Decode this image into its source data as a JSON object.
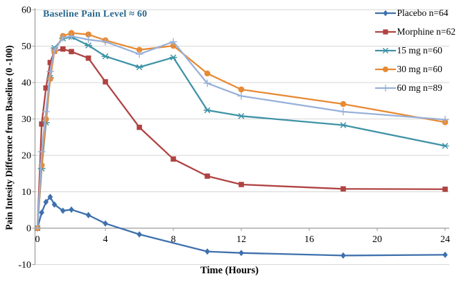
{
  "chart_data": {
    "type": "line",
    "annotation": "Baseline Pain Level ≈ 60",
    "xlabel": "Time (Hours)",
    "ylabel": "Pain Intesity Difference from Baseline (0 -100)",
    "xlim": [
      0,
      24
    ],
    "ylim": [
      -10,
      60
    ],
    "xticks": [
      0,
      4,
      8,
      12,
      16,
      20,
      24
    ],
    "yticks": [
      -10,
      0,
      10,
      20,
      30,
      40,
      50,
      60
    ],
    "grid": "horizontal",
    "legend_position": "top-right",
    "series": [
      {
        "name": "Placebo n=64",
        "color": "#3E70AD",
        "marker": "diamond",
        "x": [
          0,
          0.25,
          0.5,
          0.75,
          1,
          1.5,
          2,
          3,
          4,
          6,
          10,
          12,
          18,
          24
        ],
        "y": [
          0,
          4.3,
          7.2,
          8.6,
          6.5,
          4.8,
          5.1,
          3.6,
          1.3,
          -1.7,
          -6.4,
          -6.8,
          -7.5,
          -7.3
        ]
      },
      {
        "name": "Morphine n=62",
        "color": "#AF4342",
        "marker": "square",
        "x": [
          0,
          0.25,
          0.5,
          0.75,
          1,
          1.5,
          2,
          3,
          4,
          6,
          8,
          10,
          12,
          18,
          24
        ],
        "y": [
          0,
          28.6,
          38.5,
          45.5,
          48.6,
          49.2,
          48.5,
          46.7,
          40.2,
          27.7,
          19.0,
          14.3,
          12.0,
          10.8,
          10.7
        ]
      },
      {
        "name": "15 mg n=60",
        "color": "#3E93A6",
        "marker": "star",
        "x": [
          0,
          0.25,
          0.5,
          0.75,
          1,
          1.5,
          2,
          3,
          4,
          6,
          8,
          10,
          12,
          18,
          24
        ],
        "y": [
          0,
          16.4,
          29.0,
          41.3,
          49.5,
          52.1,
          52.5,
          50.2,
          47.2,
          44.2,
          46.9,
          32.4,
          30.8,
          28.3,
          22.6
        ]
      },
      {
        "name": "30 mg n=60",
        "color": "#E78A33",
        "marker": "circle",
        "x": [
          0,
          0.25,
          0.5,
          0.75,
          1,
          1.5,
          2,
          3,
          4,
          6,
          8,
          10,
          12,
          18,
          24
        ],
        "y": [
          0,
          17.3,
          30.0,
          41.0,
          48.6,
          52.8,
          53.6,
          53.2,
          51.6,
          49.0,
          50.1,
          42.5,
          38.1,
          34.1,
          29.1
        ]
      },
      {
        "name": "60 mg n=89",
        "color": "#98B1D9",
        "marker": "plus",
        "x": [
          0,
          0.25,
          0.5,
          0.75,
          1,
          1.5,
          2,
          3,
          4,
          6,
          8,
          10,
          12,
          18,
          24
        ],
        "y": [
          0,
          21.0,
          32.0,
          43.0,
          48.9,
          52.3,
          52.7,
          51.8,
          51.2,
          47.8,
          51.2,
          39.8,
          36.3,
          32.0,
          29.8
        ]
      }
    ],
    "styles": {
      "annotation_color": "#29688C",
      "grid_color": "#D6D6D6",
      "axis_color": "#9B9B9B",
      "tick_label_color": "#000000",
      "background": "#FFFFFF"
    }
  }
}
